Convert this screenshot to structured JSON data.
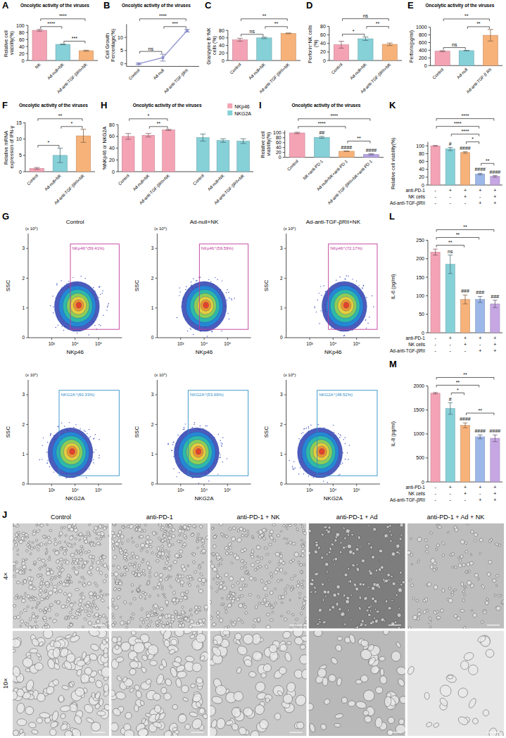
{
  "chart_data": [
    {
      "panel": "A",
      "type": "bar",
      "title": "Oncolytic activity of the viruses",
      "y_label": "Relative cell viability(%)",
      "categories": [
        "NK",
        "Ad-null+NK",
        "Ad-anti-TGF-βRII+NK"
      ],
      "values": [
        86,
        46,
        28
      ],
      "errors": [
        2.5,
        1,
        1.5
      ],
      "colors": [
        "#f4a3b5",
        "#86d0d8",
        "#f7b27a"
      ],
      "ylim": [
        0,
        100
      ],
      "yticks": [
        0,
        20,
        40,
        60,
        80,
        100
      ],
      "annotations": [
        {
          "pair": [
            1,
            2
          ],
          "text": "***"
        },
        {
          "pair": [
            0,
            1
          ],
          "text": "****"
        },
        {
          "pair": [
            0,
            2
          ],
          "text": "****"
        }
      ]
    },
    {
      "panel": "B",
      "type": "line",
      "title": "Oncolytic activity of the viruses",
      "y_label": "Cell Growth Percentage(%)",
      "categories": [
        "Control",
        "Ad-null",
        "Ad-anti-TGF-βRII"
      ],
      "values": [
        0,
        2.3,
        12.5
      ],
      "errors": [
        0.3,
        1.3,
        0.5
      ],
      "color": "#8c8fcf",
      "marker": "circle",
      "ylim": [
        -1,
        15
      ],
      "yticks": [
        0,
        5,
        10
      ],
      "annotations": [
        {
          "pair": [
            0,
            1
          ],
          "text": "ns"
        },
        {
          "pair": [
            1,
            2
          ],
          "text": "***"
        },
        {
          "pair": [
            0,
            2
          ],
          "text": "****"
        }
      ]
    },
    {
      "panel": "C",
      "type": "bar",
      "y_label": "Granzyme B⁺NK cells (%)",
      "categories": [
        "Control",
        "Ad-null+NK",
        "Ad-anti-TGF-βRII+NK"
      ],
      "values": [
        55,
        60,
        72
      ],
      "errors": [
        4,
        2,
        1
      ],
      "colors": [
        "#f4a3b5",
        "#86d0d8",
        "#f7b27a"
      ],
      "ylim": [
        0,
        80
      ],
      "yticks": [
        0,
        20,
        40,
        60,
        80
      ],
      "annotations": [
        {
          "pair": [
            0,
            1
          ],
          "text": "ns"
        },
        {
          "pair": [
            1,
            2
          ],
          "text": "**"
        },
        {
          "pair": [
            0,
            2
          ],
          "text": "**"
        }
      ]
    },
    {
      "panel": "D",
      "type": "bar",
      "y_label": "Perforin⁺NK cells (%)",
      "categories": [
        "Control",
        "Ad-null+NK",
        "Ad-anti-TGF-βRII+NK"
      ],
      "values": [
        37,
        51,
        38
      ],
      "errors": [
        8,
        4,
        3
      ],
      "colors": [
        "#f4a3b5",
        "#86d0d8",
        "#f7b27a"
      ],
      "ylim": [
        0,
        80
      ],
      "yticks": [
        0,
        20,
        40,
        60,
        80
      ],
      "annotations": [
        {
          "pair": [
            0,
            1
          ],
          "text": "*"
        },
        {
          "pair": [
            1,
            2
          ],
          "text": "**"
        },
        {
          "pair": [
            0,
            2
          ],
          "text": "ns"
        }
      ]
    },
    {
      "panel": "E",
      "type": "bar",
      "title": "Oncolytic activity of the viruses",
      "y_label": "Perforin(pg/ml)",
      "categories": [
        "Control",
        "Ad-null",
        "Ad-anti-TGF-β RII"
      ],
      "values": [
        375,
        390,
        790
      ],
      "errors": [
        15,
        6,
        150
      ],
      "colors": [
        "#f4a3b5",
        "#86d0d8",
        "#f7b27a"
      ],
      "ylim": [
        0,
        1000
      ],
      "yticks": [
        0,
        200,
        400,
        600,
        800,
        1000
      ],
      "annotations": [
        {
          "pair": [
            0,
            1
          ],
          "text": "ns"
        },
        {
          "pair": [
            1,
            2
          ],
          "text": "**"
        },
        {
          "pair": [
            0,
            2
          ],
          "text": "**"
        }
      ]
    },
    {
      "panel": "F",
      "type": "bar",
      "title": "Oncolytic activity of the viruses",
      "y_label": "Relative mRNA expression of IFN-γ",
      "categories": [
        "Control",
        "Ad-null+NK",
        "Ad-anti-TGF-βRII+NK"
      ],
      "values": [
        1,
        5,
        11
      ],
      "errors": [
        0.3,
        2.2,
        2
      ],
      "colors": [
        "#f4a3b5",
        "#86d0d8",
        "#f7b27a"
      ],
      "ylim": [
        0,
        15
      ],
      "yticks": [
        0,
        5,
        10,
        15
      ],
      "annotations": [
        {
          "pair": [
            0,
            1
          ],
          "text": "*"
        },
        {
          "pair": [
            1,
            2
          ],
          "text": "*"
        },
        {
          "pair": [
            0,
            2
          ],
          "text": "**"
        }
      ]
    },
    {
      "panel": "G",
      "type": "flow",
      "columns": [
        "Control",
        "Ad-null+NK",
        "Ad-anti-TGF-βRII+NK"
      ],
      "rows": [
        {
          "x_label": "NKp46",
          "y_label": "SSC",
          "gates": [
            "NKp46⁺(59.41%)",
            "NKp46⁺(59.59%)",
            "NKp46⁺(72.17%)"
          ],
          "color": "#c0399a"
        },
        {
          "x_label": "NKG2A",
          "y_label": "SSC",
          "gates": [
            "NKG2A⁺(60.33%)",
            "NKG2A⁺(53.69%)",
            "NKG2A⁺(48.52%)"
          ],
          "color": "#2f8fc9"
        }
      ],
      "xlim": [
        2,
        6
      ],
      "xticks": [
        {
          "value": 3,
          "label": "10³"
        },
        {
          "value": 4,
          "label": "10⁴"
        },
        {
          "value": 5,
          "label": "10⁵"
        }
      ],
      "ylim": [
        0,
        3.5
      ],
      "yticks": [
        0,
        1,
        2,
        3
      ],
      "y_scale": "(x 10⁶)"
    },
    {
      "panel": "H",
      "type": "bar",
      "title": "Oncolytic activity of the viruses",
      "y_label": "%NKp46 or NKG2A",
      "categories": [
        "Control",
        "Ad-null+NK",
        "Ad-anti-TGF-βRII+NK"
      ],
      "series": [
        {
          "name": "NKp46",
          "color": "#f4a3b5",
          "values": [
            60,
            62,
            71
          ],
          "errors": [
            5,
            3,
            1
          ],
          "annotations": [
            {
              "pair": [
                1,
                2
              ],
              "text": "**"
            },
            {
              "pair": [
                0,
                2
              ],
              "text": "*"
            }
          ]
        },
        {
          "name": "NKG2A",
          "color": "#86d0d8",
          "values": [
            58,
            53,
            52
          ],
          "errors": [
            6,
            3,
            4
          ]
        }
      ],
      "ylim": [
        0,
        80
      ],
      "yticks": [
        0,
        20,
        40,
        60,
        80
      ],
      "legend": "upper right"
    },
    {
      "panel": "I",
      "type": "bar",
      "title": "Oncolytic activity of the viruses",
      "y_label": "Relative cell viability(%)",
      "categories": [
        "Control",
        "NK+anti-PD-1",
        "Ad-null+NK+anti-PD-1",
        "Ad-anti-TGF-βRII+NK+anti-PD-1"
      ],
      "values": [
        100,
        82,
        25,
        12
      ],
      "errors": [
        3,
        4,
        1,
        2.5
      ],
      "colors": [
        "#f4a3b5",
        "#86d0d8",
        "#f7b27a",
        "#b8a7e6"
      ],
      "ylim": [
        0,
        110
      ],
      "yticks": [
        0,
        20,
        40,
        60,
        80,
        100
      ],
      "bar_marks": [
        null,
        "##",
        "####",
        "####"
      ],
      "annotations": [
        {
          "pair": [
            2,
            3
          ],
          "text": "**"
        },
        {
          "pair": [
            0,
            2
          ],
          "text": "****"
        },
        {
          "pair": [
            0,
            3
          ],
          "text": "****"
        }
      ]
    },
    {
      "panel": "J",
      "type": "image_grid",
      "columns": [
        "Control",
        "anti-PD-1",
        "anti-PD-1 + NK",
        "anti-PD-1 + Ad",
        "anti-PD-1 + Ad + NK"
      ],
      "rows": [
        "4×",
        "10×"
      ]
    },
    {
      "panel": "K",
      "type": "bar",
      "y_label": "Relative cell viability(%)",
      "categories": [
        null,
        null,
        null,
        null,
        null
      ],
      "values": [
        100,
        92,
        83,
        28,
        22
      ],
      "errors": [
        1,
        4,
        2,
        2,
        2
      ],
      "colors": [
        "#f4a3b5",
        "#86d0d8",
        "#f7b27a",
        "#9db7e8",
        "#c6a6e3"
      ],
      "ylim": [
        0,
        110
      ],
      "yticks": [
        0,
        20,
        40,
        60,
        80,
        100
      ],
      "bar_marks": [
        null,
        "#",
        "####",
        "####",
        "####"
      ],
      "annotations": [
        {
          "pair": [
            3,
            4
          ],
          "text": "**"
        },
        {
          "pair": [
            2,
            3
          ],
          "text": "*"
        },
        {
          "pair": [
            1,
            3
          ],
          "text": "****"
        },
        {
          "pair": [
            0,
            3
          ],
          "text": "****"
        },
        {
          "pair": [
            0,
            4
          ],
          "text": "****"
        }
      ],
      "table": {
        "rows": [
          {
            "label": "anti-PD-1",
            "cells": [
              "-",
              "+",
              "+",
              "+",
              "+"
            ]
          },
          {
            "label": "NK cells",
            "cells": [
              "-",
              "-",
              "+",
              "-",
              "+"
            ]
          },
          {
            "label": "Ad-anti-TGF-βRII",
            "cells": [
              "-",
              "-",
              "-",
              "+",
              "+"
            ]
          }
        ]
      }
    },
    {
      "panel": "L",
      "type": "bar",
      "y_label": "IL-6 (pg/ml)",
      "categories": [
        null,
        null,
        null,
        null,
        null
      ],
      "values": [
        218,
        185,
        90,
        90,
        78
      ],
      "errors": [
        8,
        25,
        12,
        8,
        10
      ],
      "colors": [
        "#f4a3b5",
        "#86d0d8",
        "#f7b27a",
        "#9db7e8",
        "#c6a6e3"
      ],
      "ylim": [
        0,
        250
      ],
      "yticks": [
        0,
        50,
        100,
        150,
        200,
        250
      ],
      "bar_marks": [
        null,
        "ns",
        "###",
        "###",
        "###"
      ],
      "annotations": [
        {
          "pair": [
            0,
            2
          ],
          "text": "**"
        },
        {
          "pair": [
            0,
            3
          ],
          "text": "**"
        },
        {
          "pair": [
            0,
            4
          ],
          "text": "**"
        }
      ],
      "table": {
        "rows": [
          {
            "label": "anti-PD-1",
            "cells": [
              "-",
              "+",
              "+",
              "+",
              "+"
            ]
          },
          {
            "label": "NK cells",
            "cells": [
              "-",
              "-",
              "+",
              "-",
              "+"
            ]
          },
          {
            "label": "Ad-anti-TGF-βRII",
            "cells": [
              "-",
              "-",
              "-",
              "+",
              "+"
            ]
          }
        ]
      }
    },
    {
      "panel": "M",
      "type": "bar",
      "y_label": "IL-8 (pg/ml)",
      "categories": [
        null,
        null,
        null,
        null,
        null
      ],
      "values": [
        1850,
        1530,
        1180,
        940,
        910
      ],
      "errors": [
        15,
        120,
        50,
        40,
        70
      ],
      "colors": [
        "#f4a3b5",
        "#86d0d8",
        "#f7b27a",
        "#9db7e8",
        "#c6a6e3"
      ],
      "ylim": [
        0,
        2000
      ],
      "yticks": [
        0,
        500,
        1000,
        1500,
        2000
      ],
      "bar_marks": [
        null,
        "#",
        "####",
        "####",
        "####"
      ],
      "annotations": [
        {
          "pair": [
            2,
            4
          ],
          "text": "**"
        },
        {
          "pair": [
            1,
            2
          ],
          "text": "*"
        },
        {
          "pair": [
            0,
            3
          ],
          "text": "**"
        },
        {
          "pair": [
            0,
            4
          ],
          "text": "**"
        }
      ],
      "table": {
        "rows": [
          {
            "label": "anti-PD-1",
            "cells": [
              "-",
              "+",
              "+",
              "+",
              "+"
            ]
          },
          {
            "label": "NK cells",
            "cells": [
              "-",
              "-",
              "+",
              "-",
              "+"
            ]
          },
          {
            "label": "Ad-anti-TGF-βRII",
            "cells": [
              "-",
              "-",
              "-",
              "+",
              "+"
            ]
          }
        ]
      }
    }
  ]
}
